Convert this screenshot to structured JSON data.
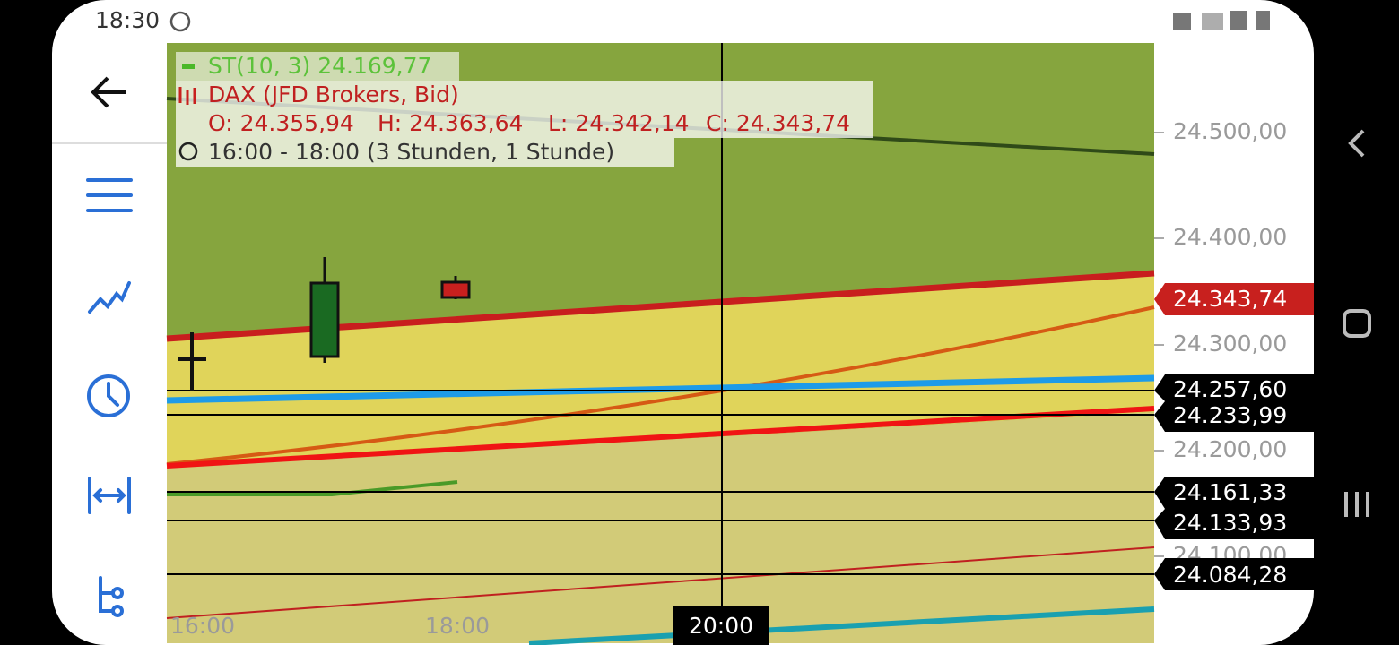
{
  "status_bar": {
    "time": "18:30"
  },
  "legend": {
    "supertrend": "ST(10, 3) 24.169,77",
    "instrument": "DAX (JFD Brokers, Bid)",
    "ohlc": {
      "open": "O: 24.355,94",
      "high": "H: 24.363,64",
      "low": "L: 24.342,14",
      "close": "C: 24.343,74"
    },
    "period": "16:00 - 18:00  (3 Stunden, 1 Stunde)"
  },
  "price_axis": {
    "labels": [
      "24.500,00",
      "24.400,00",
      "24.300,00",
      "24.200,00",
      "24.100,00"
    ]
  },
  "price_tags": [
    "24.343,74",
    "24.257,60",
    "24.233,99",
    "24.161,33",
    "24.133,93",
    "24.084,28"
  ],
  "time_axis": {
    "labels": [
      "16:00",
      "18:00",
      "20:00"
    ]
  }
}
